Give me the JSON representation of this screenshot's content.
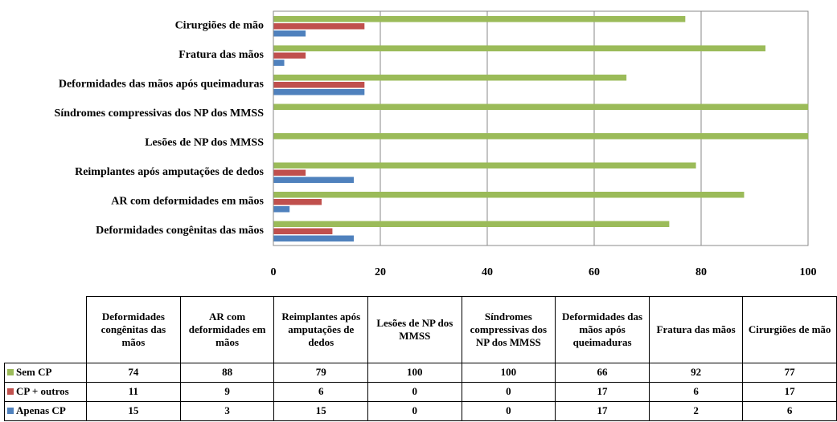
{
  "chart_data": {
    "type": "bar",
    "orientation": "horizontal",
    "categories": [
      "Deformidades congênitas das mãos",
      "AR com deformidades em mãos",
      "Reimplantes após amputações de dedos",
      "Lesões de NP dos MMSS",
      "Síndromes compressivas dos NP dos MMSS",
      "Deformidades das mãos após queimaduras",
      "Fratura das mãos",
      "Cirurgiões de mão"
    ],
    "series": [
      {
        "name": "Sem CP",
        "color": "#9bbb59",
        "values": [
          74,
          88,
          79,
          100,
          100,
          66,
          92,
          77
        ]
      },
      {
        "name": "CP + outros",
        "color": "#c0504d",
        "values": [
          11,
          9,
          6,
          0,
          0,
          17,
          6,
          17
        ]
      },
      {
        "name": "Apenas CP",
        "color": "#4f81bd",
        "values": [
          15,
          3,
          15,
          0,
          0,
          17,
          2,
          6
        ]
      }
    ],
    "xlim": [
      0,
      100
    ],
    "xticks": [
      0,
      20,
      40,
      60,
      80,
      100
    ],
    "grid": true,
    "data_table": true
  }
}
